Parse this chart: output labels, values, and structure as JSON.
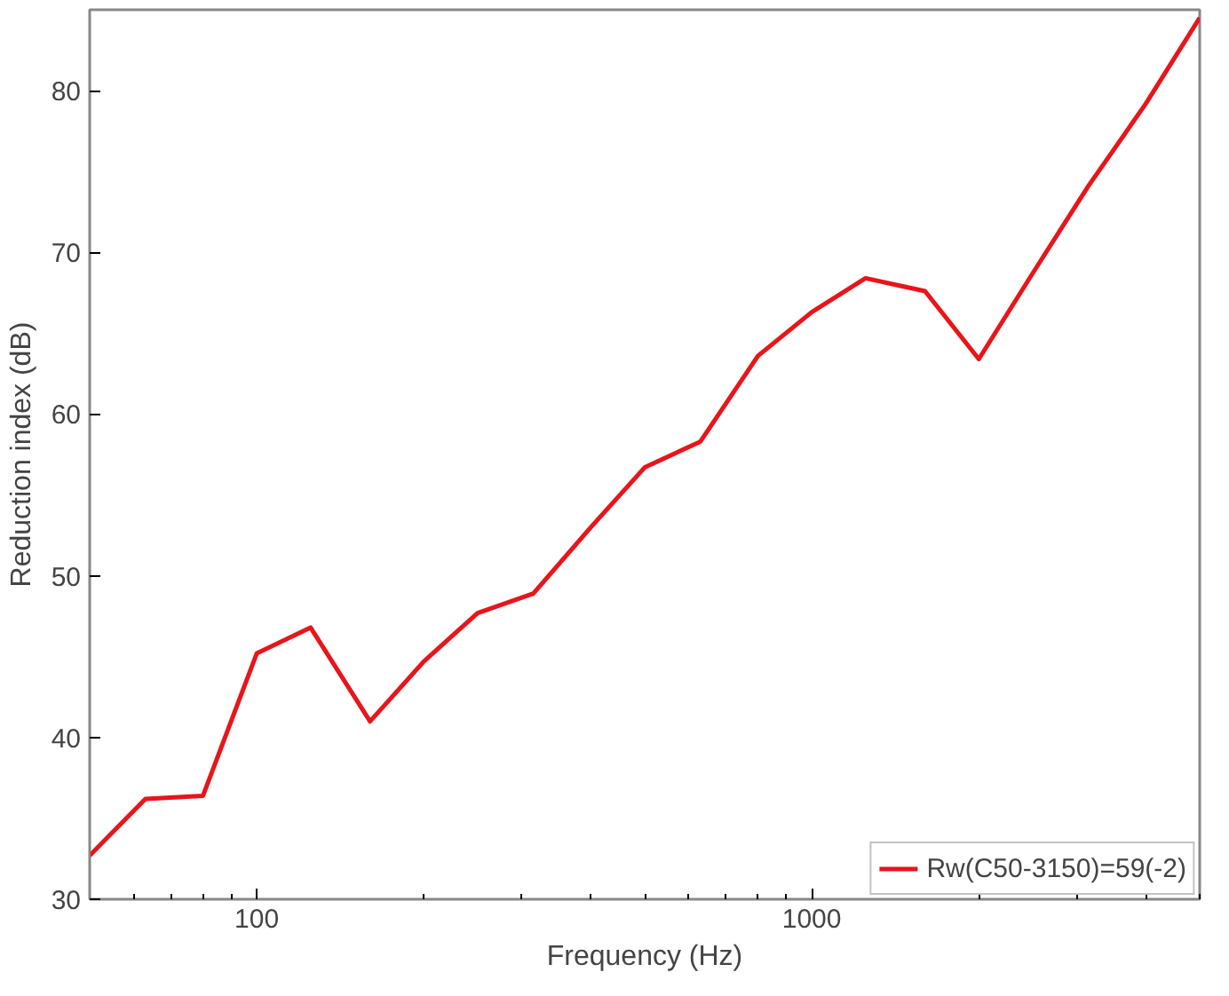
{
  "chart_data": {
    "type": "line",
    "xlabel": "Frequency (Hz)",
    "ylabel": "Reduction index (dB)",
    "x": [
      50,
      63,
      80,
      100,
      125,
      160,
      200,
      250,
      315,
      400,
      500,
      630,
      800,
      1000,
      1250,
      1600,
      2000,
      2500,
      3150,
      4000,
      5000
    ],
    "series": [
      {
        "name": "Rw(C50-3150)=59(-2)",
        "color": "#e8151b",
        "values": [
          32.7,
          36.2,
          36.4,
          45.2,
          46.8,
          41.0,
          44.7,
          47.7,
          48.9,
          53.0,
          56.7,
          58.3,
          63.6,
          66.3,
          68.4,
          67.6,
          63.4,
          68.7,
          74.1,
          79.2,
          84.5
        ]
      }
    ],
    "log": "x",
    "xlim": [
      50,
      5000
    ],
    "xticks": [
      100,
      1000
    ],
    "ylim": [
      30,
      85
    ],
    "yticks": [
      30,
      40,
      50,
      60,
      70,
      80
    ],
    "grid": false,
    "legend": "bottom right",
    "marker": "none",
    "line_style": "solid"
  }
}
